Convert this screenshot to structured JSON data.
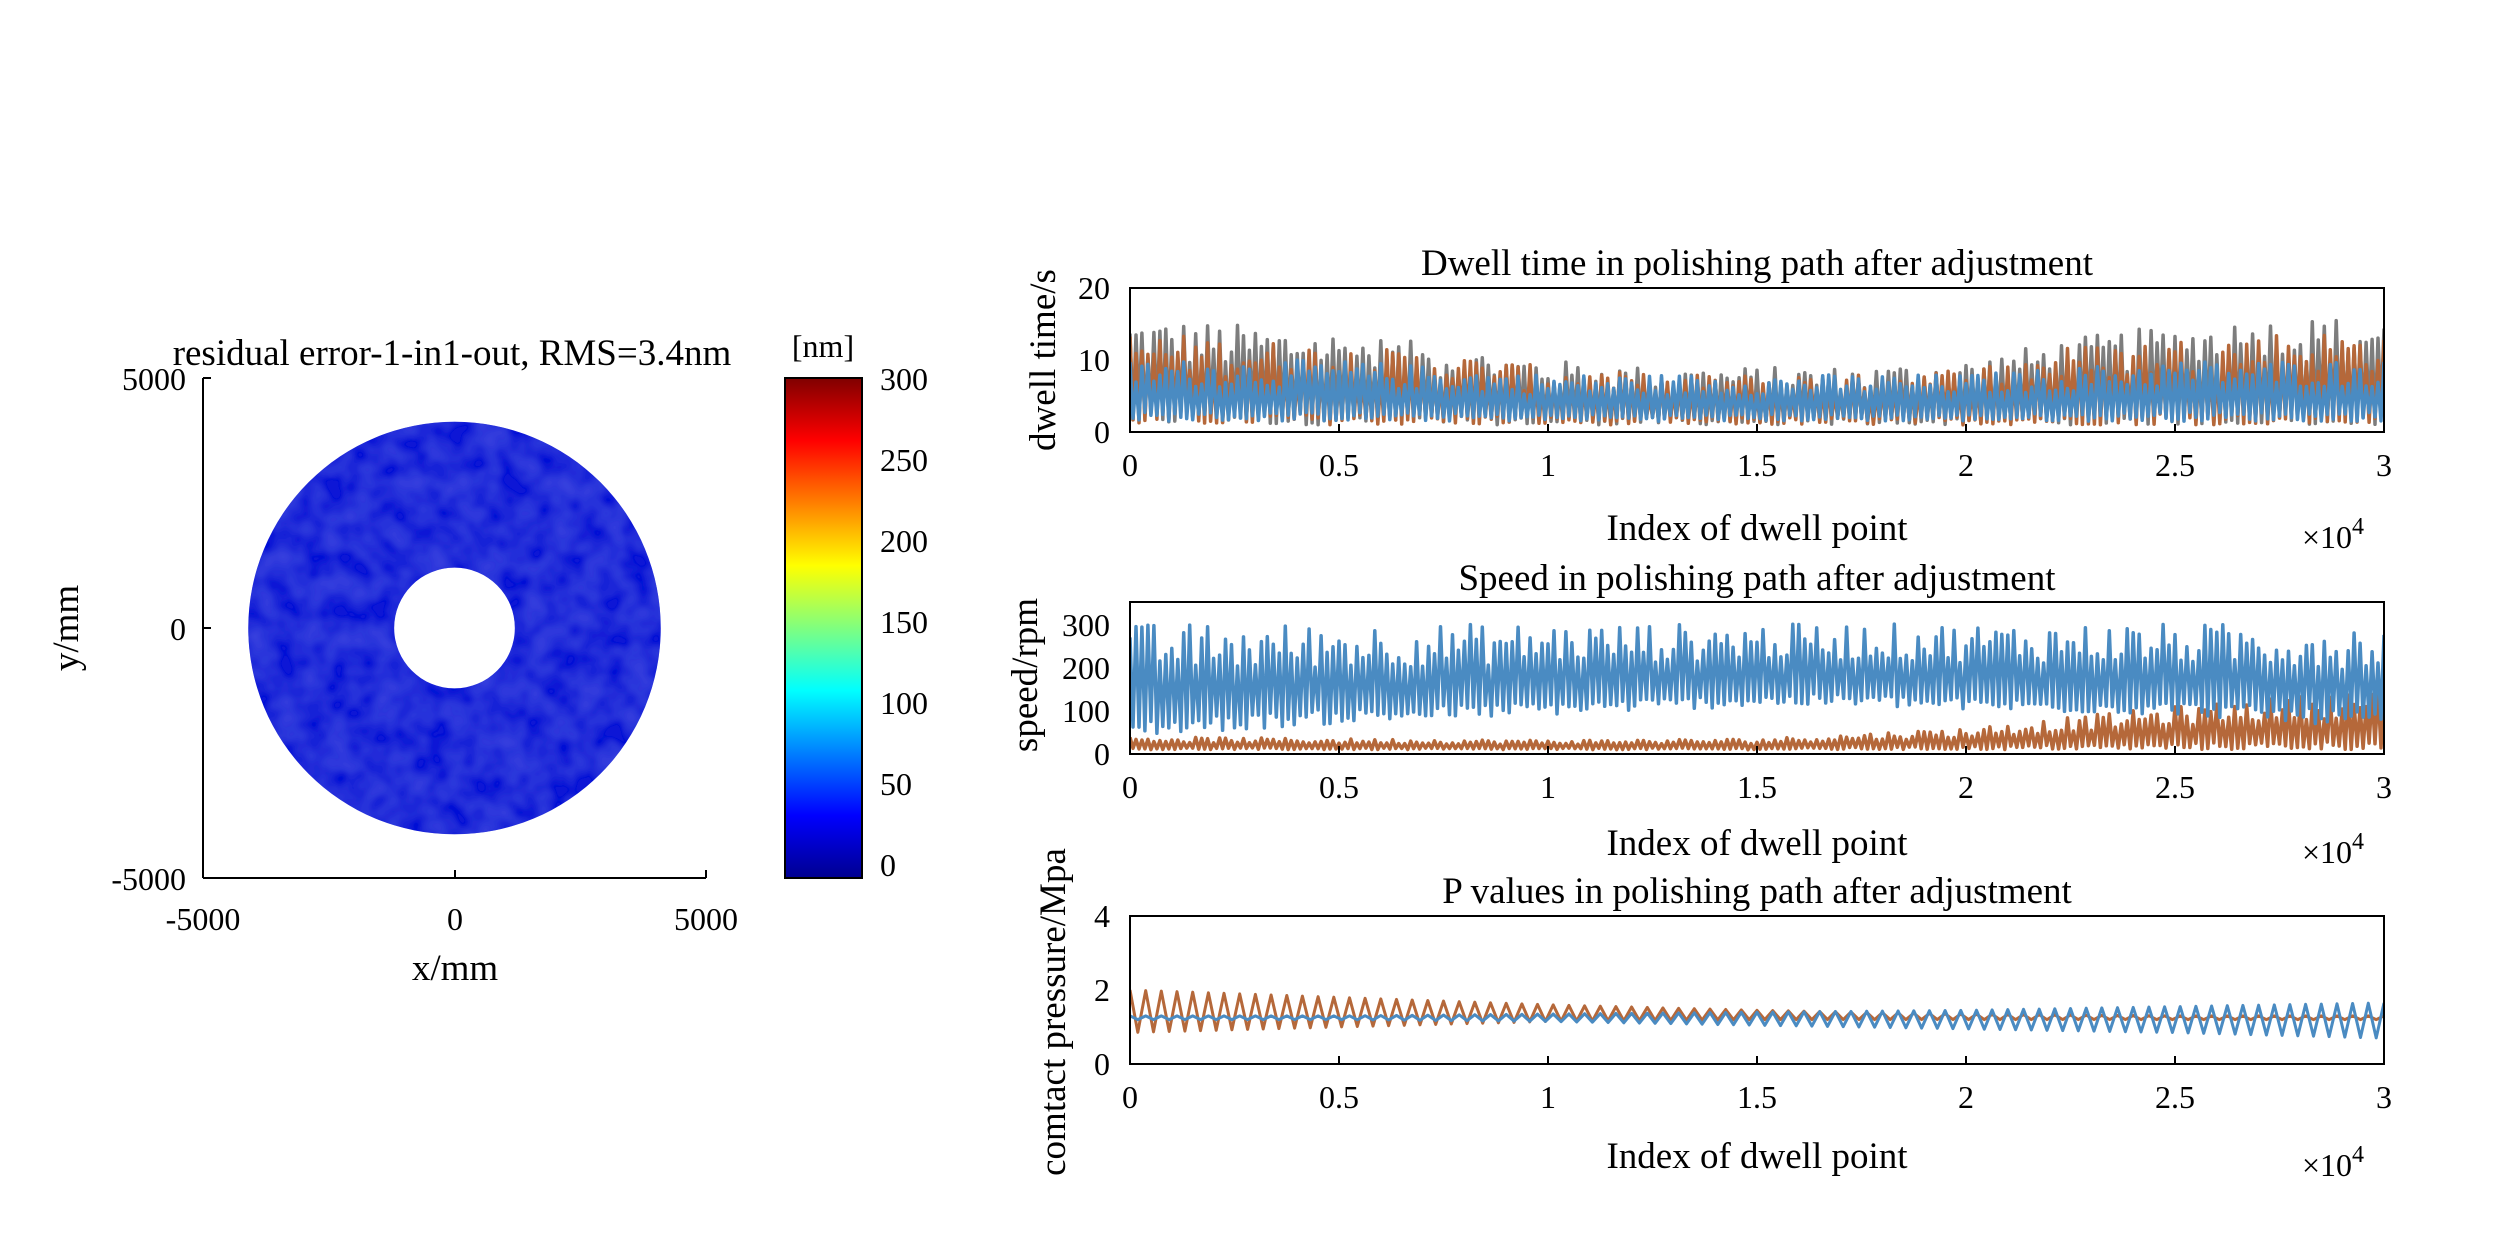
{
  "colors": {
    "blue_series": "#4a8bc2",
    "orange_series": "#b5683a",
    "gray_series": "#7d7d7d",
    "map_fill": "#1016d6",
    "axis": "#000000",
    "background": "#ffffff"
  },
  "chart_data": [
    {
      "type": "heatmap",
      "title": "residual error-1-in1-out, RMS=3.4nm",
      "xlabel": "x/mm",
      "ylabel": "y/mm",
      "xlim": [
        -5000,
        5000
      ],
      "ylim": [
        -5000,
        5000
      ],
      "x_ticks": [
        "-5000",
        "0",
        "5000"
      ],
      "y_ticks": [
        "5000",
        "0",
        "-5000"
      ],
      "shape": {
        "kind": "annulus",
        "outer_radius": 4100,
        "inner_radius": 1200
      },
      "value_range": [
        0,
        20
      ],
      "colorbar": {
        "label": "[nm]",
        "range": [
          0,
          300
        ],
        "ticks": [
          "300",
          "250",
          "200",
          "150",
          "100",
          "50",
          "0"
        ],
        "colormap": "jet"
      }
    },
    {
      "type": "line",
      "title": "Dwell time in polishing path after adjustment",
      "xlabel": "Index of dwell point",
      "ylabel": "dwell time/s",
      "xlim": [
        0,
        30000
      ],
      "ylim": [
        0,
        20
      ],
      "x_ticks": [
        "0",
        "0.5",
        "1",
        "1.5",
        "2",
        "2.5",
        "3"
      ],
      "x_exponent_base": "×10",
      "x_exponent_power": "4",
      "y_ticks": [
        "20",
        "10",
        "0"
      ],
      "series": [
        {
          "color": "#7d7d7d",
          "x": [
            0,
            2500,
            5000,
            7500,
            10000,
            12500,
            15000,
            17500,
            20000,
            22500,
            25000,
            27500,
            30000
          ],
          "y_high": [
            16,
            15,
            14,
            12,
            10,
            9,
            9,
            9,
            10,
            13,
            15,
            16,
            16
          ],
          "y_low": [
            1,
            1,
            1,
            1,
            1,
            1,
            1,
            1,
            1,
            1,
            1,
            1,
            1
          ]
        },
        {
          "color": "#b5683a",
          "x": [
            0,
            2500,
            5000,
            7500,
            10000,
            12500,
            15000,
            17500,
            20000,
            22500,
            25000,
            27500,
            30000
          ],
          "y_high": [
            14,
            13,
            12,
            11,
            9,
            8,
            8,
            8,
            9,
            12,
            13,
            14,
            14
          ],
          "y_low": [
            1,
            1,
            1,
            1,
            1,
            1,
            1,
            1,
            1,
            1,
            1,
            1,
            1
          ]
        },
        {
          "color": "#4a8bc2",
          "x": [
            0,
            2500,
            5000,
            7500,
            10000,
            12500,
            15000,
            17500,
            20000,
            22500,
            25000,
            27500,
            30000
          ],
          "y_high": [
            10,
            10,
            10,
            9,
            8,
            8,
            8,
            8,
            8,
            9,
            10,
            10,
            10
          ],
          "y_low": [
            1.5,
            1.5,
            1.5,
            1.5,
            1.5,
            1.5,
            1.5,
            1.5,
            1.5,
            1.5,
            1.5,
            1.5,
            1.5
          ]
        }
      ]
    },
    {
      "type": "line",
      "title": "Speed in polishing path after adjustment",
      "xlabel": "Index of dwell point",
      "ylabel": "speed/rpm",
      "xlim": [
        0,
        30000
      ],
      "ylim": [
        0,
        350
      ],
      "x_ticks": [
        "0",
        "0.5",
        "1",
        "1.5",
        "2",
        "2.5",
        "3"
      ],
      "x_exponent_base": "×10",
      "x_exponent_power": "4",
      "y_ticks": [
        "300",
        "200",
        "100",
        "0"
      ],
      "series": [
        {
          "color": "#b5683a",
          "x": [
            0,
            5000,
            10000,
            15000,
            20000,
            22500,
            25000,
            27500,
            30000
          ],
          "y_high": [
            40,
            35,
            32,
            35,
            60,
            85,
            110,
            130,
            150
          ],
          "y_low": [
            10,
            10,
            10,
            10,
            10,
            10,
            10,
            10,
            10
          ]
        },
        {
          "color": "#4a8bc2",
          "x": [
            0,
            5000,
            10000,
            12500,
            15000,
            17500,
            20000,
            25000,
            30000
          ],
          "y_high": [
            300,
            300,
            300,
            300,
            300,
            300,
            300,
            300,
            300
          ],
          "y_low": [
            40,
            70,
            90,
            100,
            110,
            110,
            100,
            90,
            60
          ]
        }
      ]
    },
    {
      "type": "line",
      "title": "P values in polishing path after adjustment",
      "xlabel": "Index of dwell point",
      "ylabel": "comtact pressure/Mpa",
      "xlim": [
        0,
        30000
      ],
      "ylim": [
        0,
        4
      ],
      "x_ticks": [
        "0",
        "0.5",
        "1",
        "1.5",
        "2",
        "2.5",
        "3"
      ],
      "x_exponent_base": "×10",
      "x_exponent_power": "4",
      "y_ticks": [
        "4",
        "2",
        "0"
      ],
      "series": [
        {
          "color": "#b5683a",
          "x": [
            0,
            5000,
            10000,
            15000,
            20000,
            25000,
            30000
          ],
          "y_high": [
            2.0,
            1.8,
            1.6,
            1.45,
            1.35,
            1.3,
            1.3
          ],
          "y_low": [
            0.85,
            1.0,
            1.15,
            1.2,
            1.2,
            1.2,
            1.2
          ]
        },
        {
          "color": "#4a8bc2",
          "x": [
            0,
            5000,
            10000,
            15000,
            20000,
            25000,
            30000
          ],
          "y_high": [
            1.3,
            1.3,
            1.35,
            1.4,
            1.45,
            1.55,
            1.65
          ],
          "y_low": [
            1.2,
            1.2,
            1.15,
            1.05,
            0.95,
            0.85,
            0.7
          ]
        }
      ]
    }
  ]
}
